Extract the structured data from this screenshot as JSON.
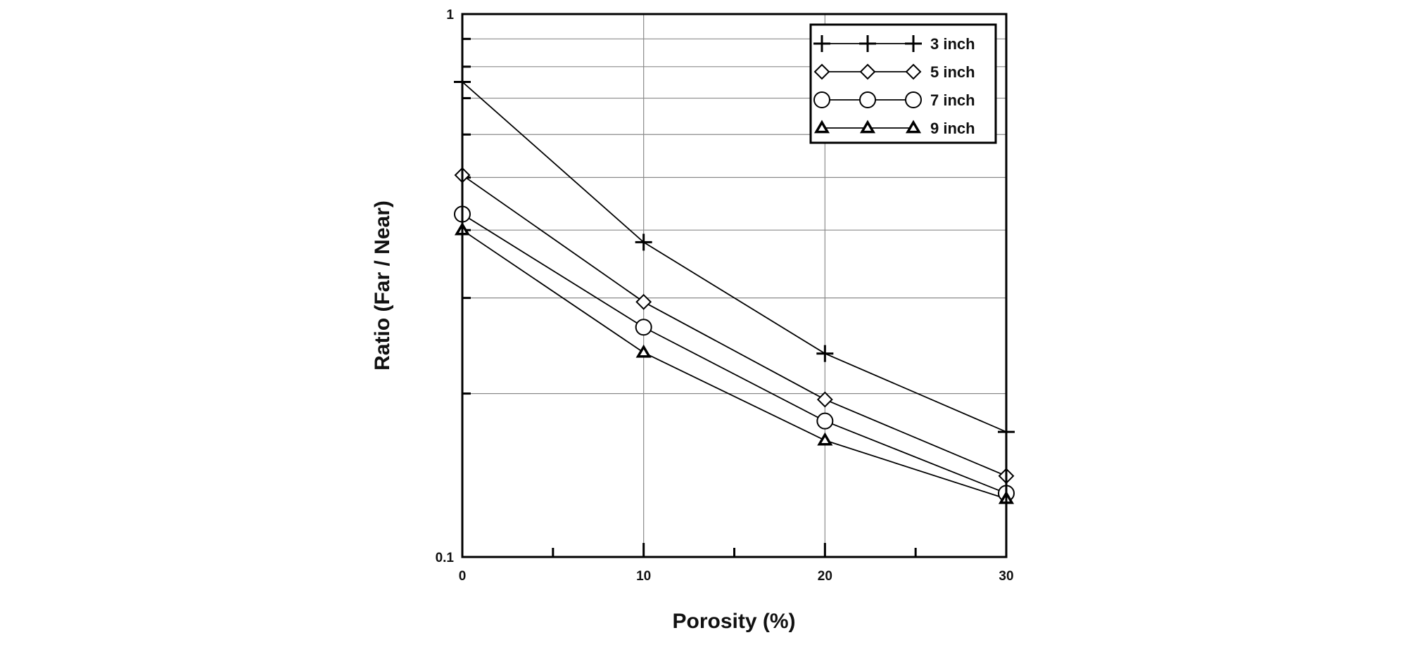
{
  "chart_data": {
    "type": "line",
    "xlabel": "Porosity (%)",
    "ylabel": "Ratio (Far / Near)",
    "x": [
      0,
      10,
      20,
      30
    ],
    "x_ticks": [
      "0",
      "10",
      "20",
      "30"
    ],
    "y_ticks": [
      "0.1",
      "1"
    ],
    "xlim": [
      0,
      30
    ],
    "ylim": [
      0.1,
      1
    ],
    "y_scale": "log",
    "grid": true,
    "legend_position": "top-right",
    "series": [
      {
        "name": "3 inch",
        "marker": "plus",
        "values": [
          0.75,
          0.38,
          0.237,
          0.17
        ]
      },
      {
        "name": "5 inch",
        "marker": "diamond",
        "values": [
          0.505,
          0.295,
          0.195,
          0.141
        ]
      },
      {
        "name": "7 inch",
        "marker": "circle",
        "values": [
          0.428,
          0.265,
          0.178,
          0.131
        ]
      },
      {
        "name": "9 inch",
        "marker": "triangle",
        "values": [
          0.4,
          0.238,
          0.164,
          0.128
        ]
      }
    ]
  }
}
